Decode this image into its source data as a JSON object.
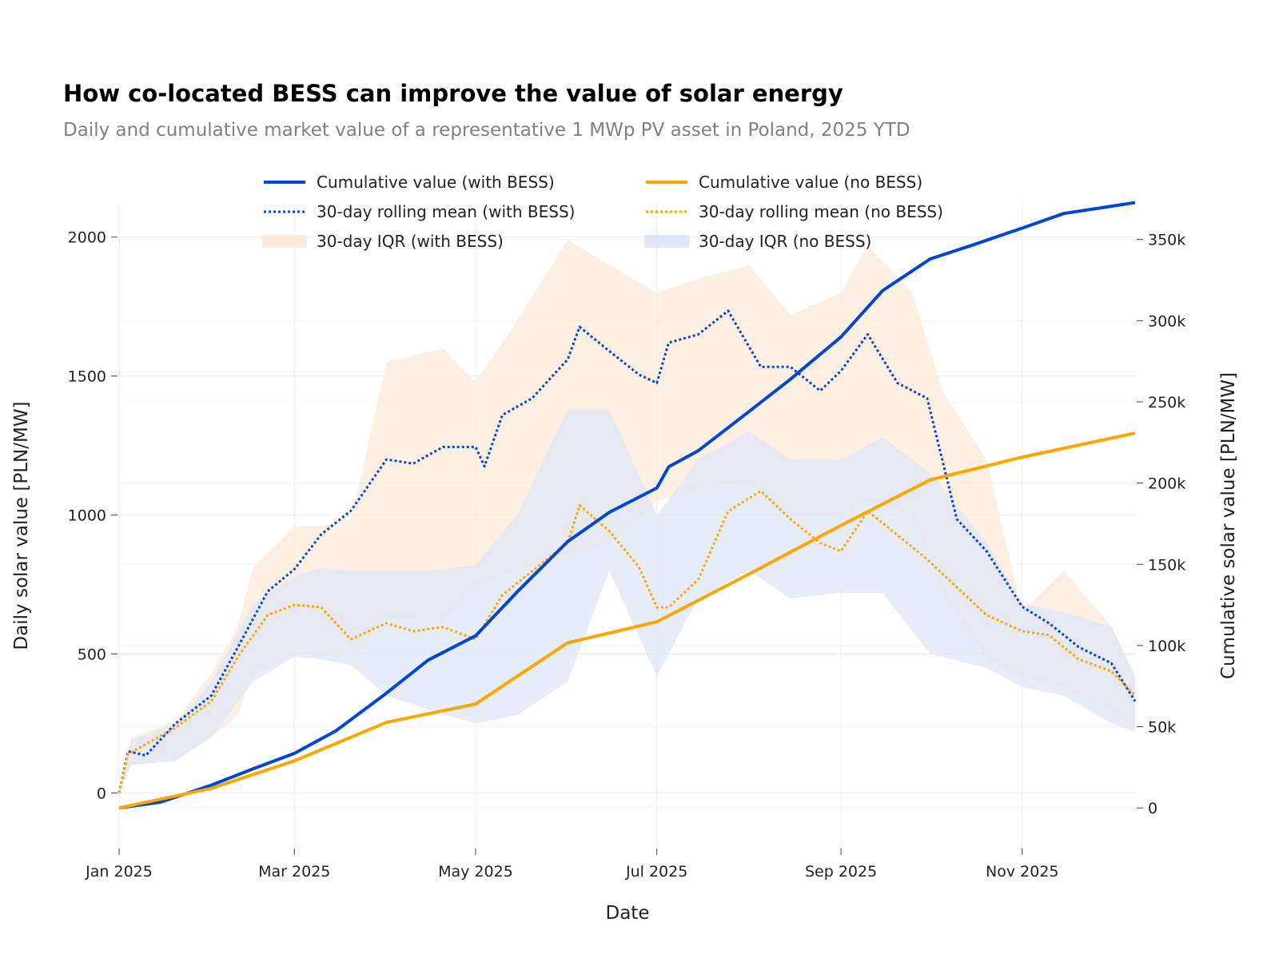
{
  "chart_data": {
    "type": "line",
    "title": "How co-located BESS can improve the value of solar energy",
    "subtitle": "Daily and cumulative market value of a representative 1 MWp PV asset in Poland, 2025 YTD",
    "xlabel": "Date",
    "ylabel": "Daily solar value [PLN/MW]",
    "y2label": "Cumulative solar value [PLN/MW]",
    "xlim": [
      "2025-01-01",
      "2025-12-09"
    ],
    "ylim": [
      -200,
      2120
    ],
    "y2lim": [
      -25000,
      372000
    ],
    "x_ticks": [
      {
        "date": "2025-01-01",
        "label": "Jan 2025"
      },
      {
        "date": "2025-03-01",
        "label": "Mar 2025"
      },
      {
        "date": "2025-05-01",
        "label": "May 2025"
      },
      {
        "date": "2025-07-01",
        "label": "Jul 2025"
      },
      {
        "date": "2025-09-01",
        "label": "Sep 2025"
      },
      {
        "date": "2025-11-01",
        "label": "Nov 2025"
      }
    ],
    "y_ticks": [
      {
        "v": 0,
        "label": "0"
      },
      {
        "v": 500,
        "label": "500"
      },
      {
        "v": 1000,
        "label": "1000"
      },
      {
        "v": 1500,
        "label": "1500"
      },
      {
        "v": 2000,
        "label": "2000"
      }
    ],
    "y2_ticks": [
      {
        "v": 0,
        "label": "0"
      },
      {
        "v": 50000,
        "label": "50k"
      },
      {
        "v": 100000,
        "label": "100k"
      },
      {
        "v": 150000,
        "label": "150k"
      },
      {
        "v": 200000,
        "label": "200k"
      },
      {
        "v": 250000,
        "label": "250k"
      },
      {
        "v": 300000,
        "label": "300k"
      },
      {
        "v": 350000,
        "label": "350k"
      }
    ],
    "grid": true,
    "legend_position": "top",
    "colors": {
      "with_bess": "#0047d6",
      "no_bess": "#ffa500",
      "iqr_with": "#fde9d9",
      "iqr_no": "#dde7f7"
    },
    "series": [
      {
        "name": "30-day IQR (with BESS)",
        "kind": "band",
        "axis": "y",
        "color": "#fde9d9",
        "x": [
          "2025-01-01",
          "2025-01-05",
          "2025-01-20",
          "2025-02-01",
          "2025-02-10",
          "2025-02-15",
          "2025-03-01",
          "2025-03-10",
          "2025-03-20",
          "2025-04-01",
          "2025-04-20",
          "2025-05-01",
          "2025-05-15",
          "2025-06-01",
          "2025-06-15",
          "2025-07-01",
          "2025-07-15",
          "2025-08-01",
          "2025-08-15",
          "2025-09-01",
          "2025-09-10",
          "2025-09-25",
          "2025-10-05",
          "2025-10-20",
          "2025-11-01",
          "2025-11-15",
          "2025-12-01",
          "2025-12-09"
        ],
        "low": [
          0,
          100,
          120,
          200,
          280,
          430,
          500,
          500,
          480,
          630,
          620,
          750,
          800,
          860,
          900,
          1050,
          1100,
          1120,
          1000,
          1000,
          1050,
          1000,
          720,
          480,
          420,
          380,
          300,
          230
        ],
        "high": [
          0,
          200,
          260,
          430,
          600,
          810,
          960,
          960,
          980,
          1550,
          1600,
          1480,
          1700,
          1990,
          1900,
          1800,
          1850,
          1900,
          1720,
          1800,
          1970,
          1800,
          1450,
          1200,
          650,
          800,
          600,
          420
        ]
      },
      {
        "name": "30-day IQR (no BESS)",
        "kind": "band",
        "axis": "y",
        "color": "#dde7f7",
        "x": [
          "2025-01-01",
          "2025-01-05",
          "2025-01-20",
          "2025-02-01",
          "2025-02-15",
          "2025-03-01",
          "2025-03-10",
          "2025-03-20",
          "2025-04-01",
          "2025-04-15",
          "2025-05-01",
          "2025-05-15",
          "2025-06-01",
          "2025-06-15",
          "2025-07-01",
          "2025-07-15",
          "2025-08-01",
          "2025-08-15",
          "2025-09-01",
          "2025-09-15",
          "2025-10-01",
          "2025-10-20",
          "2025-11-01",
          "2025-11-15",
          "2025-12-01",
          "2025-12-09"
        ],
        "low": [
          0,
          100,
          115,
          200,
          400,
          490,
          480,
          460,
          350,
          300,
          250,
          280,
          400,
          800,
          420,
          700,
          800,
          700,
          720,
          720,
          500,
          450,
          380,
          350,
          250,
          220
        ],
        "high": [
          0,
          190,
          250,
          400,
          680,
          780,
          810,
          800,
          800,
          800,
          820,
          1000,
          1380,
          1380,
          1000,
          1200,
          1300,
          1200,
          1200,
          1280,
          1150,
          900,
          680,
          650,
          600,
          420
        ]
      },
      {
        "name": "30-day rolling mean (with BESS)",
        "kind": "dotted",
        "axis": "y",
        "color": "#0047d6",
        "x": [
          "2025-01-01",
          "2025-01-04",
          "2025-01-10",
          "2025-01-20",
          "2025-02-01",
          "2025-02-10",
          "2025-02-20",
          "2025-03-01",
          "2025-03-10",
          "2025-03-20",
          "2025-04-01",
          "2025-04-10",
          "2025-04-20",
          "2025-05-01",
          "2025-05-04",
          "2025-05-10",
          "2025-05-20",
          "2025-06-01",
          "2025-06-05",
          "2025-06-15",
          "2025-06-25",
          "2025-07-01",
          "2025-07-05",
          "2025-07-15",
          "2025-07-25",
          "2025-08-05",
          "2025-08-15",
          "2025-08-25",
          "2025-09-01",
          "2025-09-10",
          "2025-09-20",
          "2025-09-30",
          "2025-10-10",
          "2025-10-20",
          "2025-11-01",
          "2025-11-10",
          "2025-11-20",
          "2025-12-01",
          "2025-12-09"
        ],
        "y": [
          0,
          150,
          135,
          250,
          350,
          525,
          725,
          805,
          930,
          1015,
          1200,
          1185,
          1245,
          1245,
          1175,
          1360,
          1420,
          1560,
          1677,
          1590,
          1505,
          1475,
          1620,
          1650,
          1735,
          1533,
          1533,
          1447,
          1519,
          1650,
          1475,
          1420,
          985,
          870,
          670,
          611,
          525,
          467,
          330
        ]
      },
      {
        "name": "30-day rolling mean (no BESS)",
        "kind": "dotted",
        "axis": "y",
        "color": "#ffa500",
        "x": [
          "2025-01-01",
          "2025-01-04",
          "2025-01-20",
          "2025-02-01",
          "2025-02-10",
          "2025-02-20",
          "2025-03-01",
          "2025-03-10",
          "2025-03-20",
          "2025-04-01",
          "2025-04-10",
          "2025-04-20",
          "2025-05-01",
          "2025-05-10",
          "2025-05-20",
          "2025-06-01",
          "2025-06-05",
          "2025-06-15",
          "2025-06-25",
          "2025-07-01",
          "2025-07-05",
          "2025-07-15",
          "2025-07-25",
          "2025-08-05",
          "2025-08-15",
          "2025-08-25",
          "2025-09-01",
          "2025-09-10",
          "2025-09-20",
          "2025-09-30",
          "2025-10-10",
          "2025-10-20",
          "2025-11-01",
          "2025-11-10",
          "2025-11-20",
          "2025-12-01",
          "2025-12-09"
        ],
        "y": [
          0,
          140,
          235,
          330,
          490,
          640,
          677,
          668,
          553,
          611,
          582,
          597,
          553,
          712,
          798,
          899,
          1035,
          942,
          813,
          668,
          668,
          769,
          1014,
          1086,
          985,
          899,
          870,
          1014,
          928,
          841,
          740,
          640,
          582,
          568,
          481,
          438,
          351
        ]
      },
      {
        "name": "Cumulative value (with BESS)",
        "kind": "solid",
        "axis": "y2",
        "color": "#0047d6",
        "x": [
          "2025-01-01",
          "2025-01-15",
          "2025-02-01",
          "2025-02-15",
          "2025-03-01",
          "2025-03-15",
          "2025-04-01",
          "2025-04-15",
          "2025-05-01",
          "2025-05-15",
          "2025-06-01",
          "2025-06-15",
          "2025-07-01",
          "2025-07-05",
          "2025-07-15",
          "2025-08-01",
          "2025-08-15",
          "2025-09-01",
          "2025-09-15",
          "2025-10-01",
          "2025-10-15",
          "2025-11-01",
          "2025-11-15",
          "2025-12-09"
        ],
        "y": [
          0,
          3600,
          14000,
          24000,
          33600,
          47500,
          70700,
          91000,
          106000,
          133000,
          164000,
          182000,
          197000,
          210000,
          220000,
          244000,
          264000,
          290000,
          318500,
          338000,
          346400,
          357000,
          366000,
          372700
        ]
      },
      {
        "name": "Cumulative value (no BESS)",
        "kind": "solid",
        "axis": "y2",
        "color": "#ffa500",
        "x": [
          "2025-01-01",
          "2025-02-01",
          "2025-03-01",
          "2025-04-01",
          "2025-05-01",
          "2025-06-01",
          "2025-07-01",
          "2025-08-01",
          "2025-09-01",
          "2025-10-01",
          "2025-11-01",
          "2025-12-09"
        ],
        "y": [
          0,
          12000,
          29000,
          52700,
          64000,
          101700,
          114600,
          144000,
          174000,
          202000,
          216000,
          230800
        ]
      }
    ],
    "legend": [
      {
        "label": "Cumulative value (with BESS)",
        "kind": "solid",
        "color": "#0047d6"
      },
      {
        "label": "Cumulative value (no BESS)",
        "kind": "solid",
        "color": "#ffa500"
      },
      {
        "label": "30-day rolling mean (with BESS)",
        "kind": "dotted",
        "color": "#0047d6"
      },
      {
        "label": "30-day rolling mean (no BESS)",
        "kind": "dotted",
        "color": "#ffa500"
      },
      {
        "label": "30-day IQR (with BESS)",
        "kind": "band",
        "color": "#fde9d9"
      },
      {
        "label": "30-day IQR (no BESS)",
        "kind": "band",
        "color": "#dde7f7"
      }
    ]
  }
}
